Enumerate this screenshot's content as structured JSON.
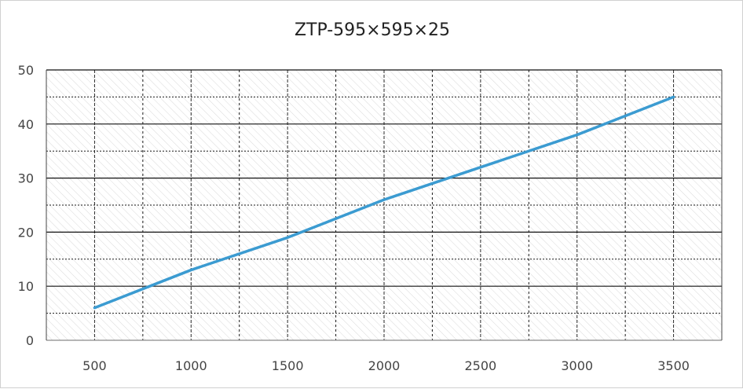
{
  "chart_data": {
    "type": "line",
    "title": "ZTP-595×595×25",
    "xlabel": "",
    "ylabel": "",
    "x_ticks": [
      "500",
      "1000",
      "1500",
      "2000",
      "2500",
      "3000",
      "3500"
    ],
    "y_ticks": [
      "0",
      "10",
      "20",
      "30",
      "40",
      "50"
    ],
    "xlim": [
      250,
      3750
    ],
    "ylim": [
      0,
      50
    ],
    "grid": true,
    "series": [
      {
        "x": [
          500,
          1000,
          1500,
          2000,
          2500,
          3000,
          3500
        ],
        "values": [
          6,
          13,
          19,
          26,
          32,
          38,
          45
        ],
        "color": "#3b9bd1"
      }
    ]
  }
}
